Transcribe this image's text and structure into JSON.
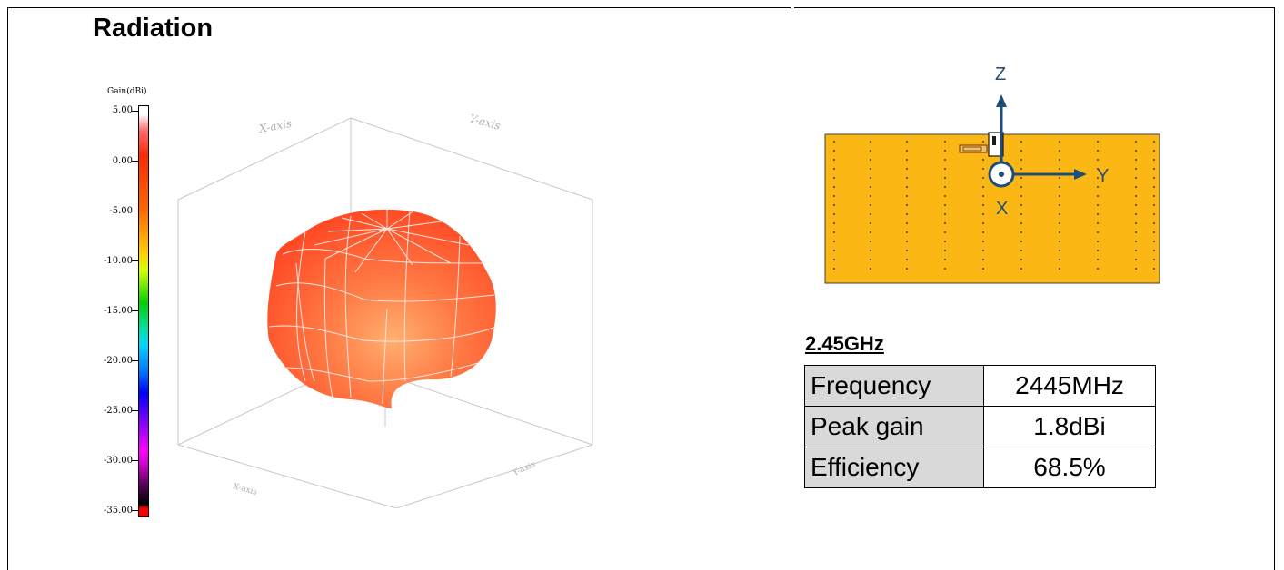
{
  "section": {
    "title": "Radiation"
  },
  "colorbar": {
    "title": "Gain(dBi)",
    "ticks": [
      "5.00",
      "0.00",
      "-5.00",
      "-10.00",
      "-15.00",
      "-20.00",
      "-25.00",
      "-30.00",
      "-35.00"
    ]
  },
  "plot3d": {
    "x_axis_label": "X-axis",
    "y_axis_label": "Y-axis",
    "bottom_left_label": "X-axis",
    "bottom_right_label": "Y-axis"
  },
  "board": {
    "axis_z": "Z",
    "axis_y": "Y",
    "axis_x": "X",
    "board_color": "#fbb713",
    "arrow_color": "#1f4e79"
  },
  "results": {
    "title": "2.45GHz",
    "rows": [
      {
        "label": "Frequency",
        "value": "2445MHz"
      },
      {
        "label": "Peak gain",
        "value": "1.8dBi"
      },
      {
        "label": "Efficiency",
        "value": "68.5%"
      }
    ]
  }
}
